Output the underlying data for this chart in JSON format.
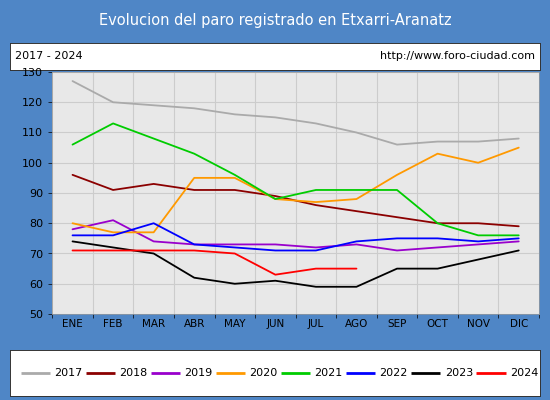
{
  "title": "Evolucion del paro registrado en Etxarri-Aranatz",
  "title_color": "#ffffff",
  "title_bg": "#4f86c6",
  "subtitle_left": "2017 - 2024",
  "subtitle_right": "http://www.foro-ciudad.com",
  "months": [
    "ENE",
    "FEB",
    "MAR",
    "ABR",
    "MAY",
    "JUN",
    "JUL",
    "AGO",
    "SEP",
    "OCT",
    "NOV",
    "DIC"
  ],
  "ylim": [
    50,
    130
  ],
  "yticks": [
    50,
    60,
    70,
    80,
    90,
    100,
    110,
    120,
    130
  ],
  "series": {
    "2017": {
      "color": "#aaaaaa",
      "data": [
        127,
        120,
        119,
        118,
        116,
        115,
        113,
        110,
        106,
        107,
        107,
        108
      ]
    },
    "2018": {
      "color": "#8b0000",
      "data": [
        96,
        91,
        93,
        91,
        91,
        89,
        86,
        84,
        82,
        80,
        80,
        79
      ]
    },
    "2019": {
      "color": "#9900cc",
      "data": [
        78,
        81,
        74,
        73,
        73,
        73,
        72,
        73,
        71,
        72,
        73,
        74
      ]
    },
    "2020": {
      "color": "#ff9900",
      "data": [
        80,
        77,
        77,
        95,
        95,
        88,
        87,
        88,
        96,
        103,
        100,
        105
      ]
    },
    "2021": {
      "color": "#00cc00",
      "data": [
        106,
        113,
        108,
        103,
        96,
        88,
        91,
        91,
        91,
        80,
        76,
        76
      ]
    },
    "2022": {
      "color": "#0000ff",
      "data": [
        76,
        76,
        80,
        73,
        72,
        71,
        71,
        74,
        75,
        75,
        74,
        75
      ]
    },
    "2023": {
      "color": "#000000",
      "data": [
        74,
        72,
        70,
        62,
        60,
        61,
        59,
        59,
        65,
        65,
        68,
        71
      ]
    },
    "2024": {
      "color": "#ff0000",
      "data": [
        71,
        71,
        71,
        71,
        70,
        63,
        65,
        65,
        null,
        null,
        null,
        null
      ]
    }
  },
  "grid_color": "#cccccc",
  "plot_bg": "#e8e8e8",
  "border_color": "#4f86c6",
  "fig_bg": "#d0d0d0"
}
